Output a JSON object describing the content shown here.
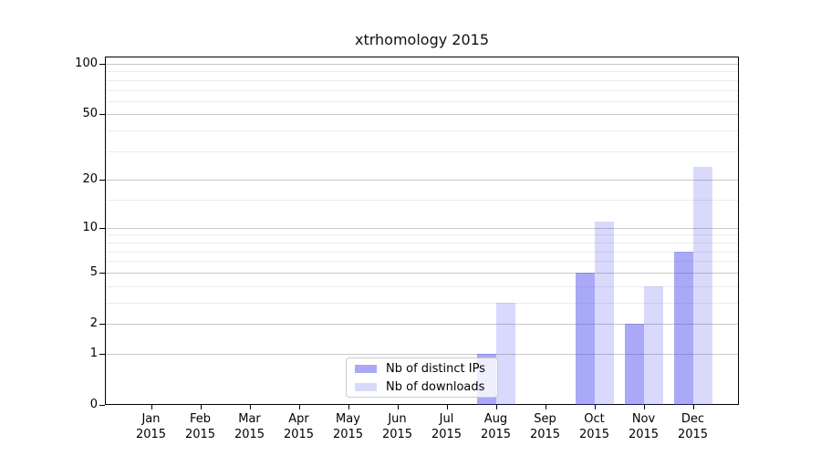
{
  "figure": {
    "background": "#ffffff"
  },
  "chart_data": {
    "type": "bar",
    "title": "xtrhomology 2015",
    "categories": [
      "Jan",
      "Feb",
      "Mar",
      "Apr",
      "May",
      "Jun",
      "Jul",
      "Aug",
      "Sep",
      "Oct",
      "Nov",
      "Dec"
    ],
    "x_tick_line2": "2015",
    "series": [
      {
        "name": "Nb of distinct IPs",
        "key": "distinct-ips",
        "color": "rgba(64,64,238,0.45)",
        "values": [
          0,
          0,
          0,
          0,
          0,
          0,
          0,
          1,
          0,
          5,
          2,
          7
        ]
      },
      {
        "name": "Nb of downloads",
        "key": "downloads",
        "color": "rgba(64,64,238,0.2)",
        "values": [
          0,
          0,
          0,
          0,
          0,
          0,
          0,
          3,
          0,
          11,
          4,
          24
        ]
      }
    ],
    "xlabel": "",
    "ylabel": "",
    "yscale": "log1p",
    "ylim": [
      0,
      111
    ],
    "yticks": [
      0,
      1,
      2,
      5,
      10,
      20,
      50,
      100
    ],
    "minor_yticks": [
      3,
      4,
      6,
      7,
      8,
      9,
      15,
      30,
      40,
      60,
      70,
      80,
      90
    ],
    "grid": true,
    "legend_position": "lower center",
    "colors": {
      "major_grid": "#c9c9c9",
      "minor_grid": "#ececec",
      "axis": "#000000",
      "text": "#000000"
    }
  }
}
